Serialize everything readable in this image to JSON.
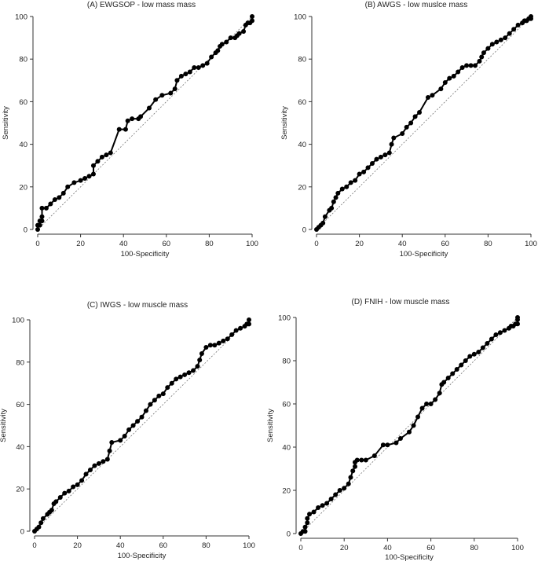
{
  "chart_data": [
    {
      "type": "line",
      "title": "(A) EWGSOP - low mass mass",
      "xlabel": "100-Specificity",
      "ylabel": "Sensitivity",
      "xlim": [
        0,
        100
      ],
      "ylim": [
        0,
        100
      ],
      "xticks": [
        "0",
        "20",
        "40",
        "60",
        "80",
        "100"
      ],
      "yticks": [
        "0",
        "20",
        "40",
        "60",
        "80",
        "100"
      ],
      "reference_line": true,
      "grid": false,
      "series": [
        {
          "x": [
            0,
            0,
            1,
            1,
            2,
            2,
            2,
            4,
            6,
            8,
            10,
            12,
            14,
            17,
            20,
            22,
            24,
            26,
            26,
            28,
            30,
            32,
            34,
            38,
            41,
            42,
            44,
            47,
            48,
            52,
            55,
            58,
            62,
            64,
            65,
            67,
            69,
            71,
            73,
            75,
            77,
            79,
            81,
            83,
            84,
            85,
            86,
            88,
            90,
            92,
            93,
            94,
            96,
            97,
            98,
            99,
            100,
            100
          ],
          "y": [
            0,
            2,
            2,
            4,
            4,
            6,
            10,
            10,
            12,
            14,
            15,
            17,
            20,
            22,
            23,
            24,
            25,
            26,
            30,
            32,
            34,
            35,
            36,
            47,
            47,
            51,
            52,
            52,
            53,
            57,
            61,
            63,
            64,
            66,
            70,
            72,
            73,
            74,
            76,
            76,
            77,
            78,
            81,
            83,
            84,
            86,
            87,
            88,
            90,
            90,
            91,
            92,
            93,
            96,
            97,
            97,
            98,
            100
          ]
        }
      ]
    },
    {
      "type": "line",
      "title": "(B) AWGS - low muslce mass",
      "xlabel": "100-Specificity",
      "ylabel": "Sensitivity",
      "xlim": [
        0,
        100
      ],
      "ylim": [
        0,
        100
      ],
      "xticks": [
        "0",
        "20",
        "40",
        "60",
        "80",
        "100"
      ],
      "yticks": [
        "0",
        "20",
        "40",
        "60",
        "80",
        "100"
      ],
      "reference_line": true,
      "grid": false,
      "series": [
        {
          "x": [
            0,
            1,
            2,
            3,
            4,
            6,
            7,
            8,
            9,
            10,
            12,
            14,
            16,
            18,
            20,
            22,
            24,
            26,
            28,
            30,
            32,
            34,
            35,
            36,
            40,
            42,
            44,
            46,
            48,
            52,
            54,
            58,
            60,
            62,
            64,
            66,
            68,
            70,
            72,
            74,
            76,
            77,
            78,
            80,
            82,
            84,
            86,
            88,
            90,
            92,
            94,
            96,
            97,
            98,
            99,
            100,
            100
          ],
          "y": [
            0,
            1,
            2,
            3,
            6,
            9,
            10,
            13,
            15,
            17,
            19,
            20,
            22,
            23,
            26,
            27,
            29,
            31,
            33,
            34,
            35,
            36,
            40,
            43,
            45,
            48,
            50,
            53,
            55,
            62,
            63,
            66,
            69,
            71,
            72,
            74,
            76,
            77,
            77,
            77,
            79,
            81,
            83,
            85,
            87,
            88,
            89,
            90,
            92,
            94,
            96,
            97,
            98,
            98,
            99,
            99,
            100
          ]
        }
      ]
    },
    {
      "type": "line",
      "title": "(C) IWGS - low muscle mass",
      "xlabel": "100-Specificity",
      "ylabel": "Sensitivity",
      "xlim": [
        0,
        100
      ],
      "ylim": [
        0,
        100
      ],
      "xticks": [
        "0",
        "20",
        "40",
        "60",
        "80",
        "100"
      ],
      "yticks": [
        "0",
        "20",
        "40",
        "60",
        "80",
        "100"
      ],
      "reference_line": true,
      "grid": false,
      "series": [
        {
          "x": [
            0,
            1,
            2,
            3,
            4,
            6,
            7,
            8,
            9,
            10,
            12,
            14,
            16,
            18,
            20,
            22,
            24,
            26,
            28,
            30,
            32,
            34,
            35,
            36,
            40,
            42,
            44,
            46,
            48,
            50,
            52,
            54,
            56,
            58,
            60,
            62,
            64,
            66,
            68,
            70,
            72,
            74,
            76,
            77,
            78,
            80,
            82,
            84,
            86,
            88,
            90,
            92,
            94,
            96,
            98,
            99,
            100,
            100
          ],
          "y": [
            0,
            1,
            2,
            4,
            6,
            8,
            9,
            10,
            13,
            14,
            16,
            18,
            19,
            21,
            22,
            24,
            27,
            29,
            31,
            32,
            33,
            34,
            38,
            42,
            43,
            45,
            48,
            50,
            52,
            54,
            57,
            60,
            62,
            64,
            65,
            68,
            70,
            72,
            73,
            74,
            75,
            76,
            78,
            81,
            84,
            87,
            88,
            88,
            89,
            90,
            91,
            93,
            95,
            96,
            97,
            98,
            98,
            100
          ]
        }
      ]
    },
    {
      "type": "line",
      "title": "(D) FNIH - low muscle mass",
      "xlabel": "100-Specificity",
      "ylabel": "Sensitivity",
      "xlim": [
        0,
        100
      ],
      "ylim": [
        0,
        100
      ],
      "xticks": [
        "0",
        "20",
        "40",
        "60",
        "80",
        "100"
      ],
      "yticks": [
        "0",
        "20",
        "40",
        "60",
        "80",
        "100"
      ],
      "reference_line": true,
      "grid": false,
      "series": [
        {
          "x": [
            0,
            1,
            2,
            2,
            3,
            3,
            4,
            6,
            8,
            10,
            12,
            14,
            16,
            18,
            20,
            22,
            23,
            24,
            25,
            25,
            26,
            28,
            30,
            34,
            38,
            40,
            44,
            46,
            50,
            52,
            54,
            56,
            58,
            60,
            62,
            64,
            65,
            66,
            68,
            70,
            72,
            74,
            76,
            78,
            80,
            82,
            84,
            86,
            88,
            90,
            92,
            94,
            96,
            97,
            98,
            99,
            100,
            100,
            100
          ],
          "y": [
            0,
            1,
            1,
            3,
            5,
            7,
            9,
            10,
            12,
            13,
            14,
            16,
            18,
            20,
            21,
            23,
            26,
            29,
            31,
            33,
            34,
            34,
            34,
            36,
            41,
            41,
            42,
            44,
            47,
            50,
            54,
            58,
            60,
            60,
            62,
            65,
            69,
            70,
            72,
            74,
            76,
            78,
            80,
            82,
            83,
            84,
            86,
            88,
            90,
            92,
            93,
            94,
            95,
            96,
            96,
            97,
            97,
            99,
            100
          ]
        }
      ]
    }
  ]
}
